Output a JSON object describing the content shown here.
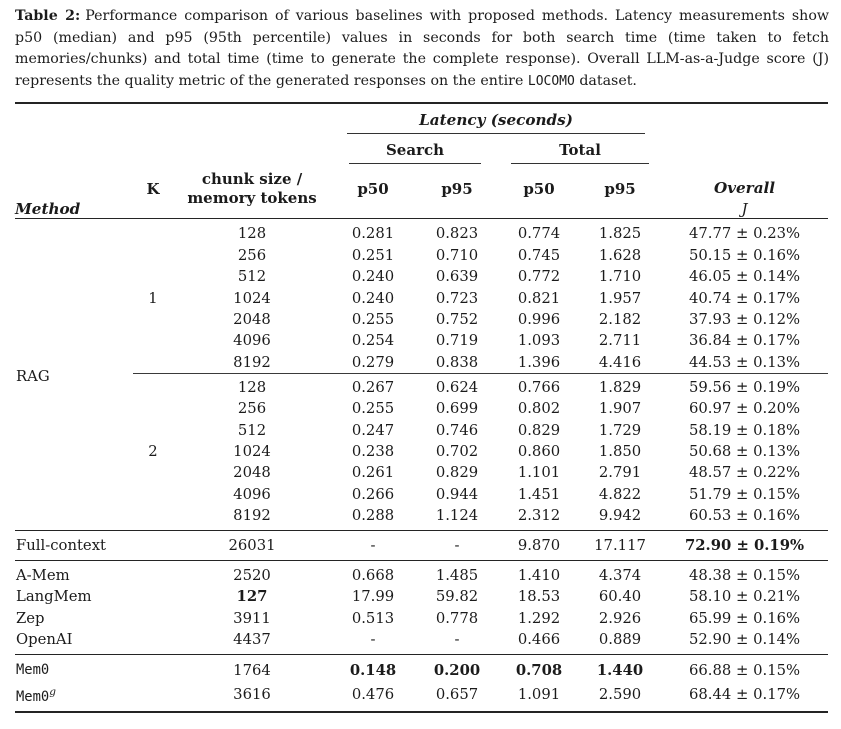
{
  "caption": {
    "label": "Table 2:",
    "body": "Performance comparison of various baselines with proposed methods. Latency measurements show p50 (median) and p95 (95th percentile) values in seconds for both search time (time taken to fetch memories/chunks) and total time (time to generate the complete response). Overall LLM-as-a-Judge score (J) represents the quality metric of the generated responses on the entire ",
    "dataset_name": "LOCOMO",
    "tail": " dataset."
  },
  "table": {
    "header": {
      "method": "Method",
      "latency_group": "Latency (seconds)",
      "search_group": "Search",
      "total_group": "Total",
      "overall": "Overall",
      "overall_metric": "J",
      "k": "K",
      "chunk_line1": "chunk size /",
      "chunk_line2": "memory tokens",
      "search_p50": "p50",
      "search_p95": "p95",
      "total_p50": "p50",
      "total_p95": "p95"
    },
    "sections": [
      {
        "divider": false,
        "rows": [
          {
            "method": "RAG",
            "method_rowspan": 14,
            "k": "",
            "chunk": "128",
            "s50": "0.281",
            "s95": "0.823",
            "t50": "0.774",
            "t95": "1.825",
            "j": "47.77 ± 0.23%"
          },
          {
            "k": "",
            "chunk": "256",
            "s50": "0.251",
            "s95": "0.710",
            "t50": "0.745",
            "t95": "1.628",
            "j": "50.15 ± 0.16%"
          },
          {
            "k": "",
            "chunk": "512",
            "s50": "0.240",
            "s95": "0.639",
            "t50": "0.772",
            "t95": "1.710",
            "j": "46.05 ± 0.14%"
          },
          {
            "k": "1",
            "chunk": "1024",
            "s50": "0.240",
            "s95": "0.723",
            "t50": "0.821",
            "t95": "1.957",
            "j": "40.74 ± 0.17%"
          },
          {
            "k": "",
            "chunk": "2048",
            "s50": "0.255",
            "s95": "0.752",
            "t50": "0.996",
            "t95": "2.182",
            "j": "37.93 ± 0.12%"
          },
          {
            "k": "",
            "chunk": "4096",
            "s50": "0.254",
            "s95": "0.719",
            "t50": "1.093",
            "t95": "2.711",
            "j": "36.84 ± 0.17%"
          },
          {
            "k": "",
            "chunk": "8192",
            "s50": "0.279",
            "s95": "0.838",
            "t50": "1.396",
            "t95": "4.416",
            "j": "44.53 ± 0.13%"
          },
          {
            "rule_above": true,
            "k": "",
            "chunk": "128",
            "s50": "0.267",
            "s95": "0.624",
            "t50": "0.766",
            "t95": "1.829",
            "j": "59.56 ± 0.19%"
          },
          {
            "k": "",
            "chunk": "256",
            "s50": "0.255",
            "s95": "0.699",
            "t50": "0.802",
            "t95": "1.907",
            "j": "60.97 ± 0.20%"
          },
          {
            "k": "",
            "chunk": "512",
            "s50": "0.247",
            "s95": "0.746",
            "t50": "0.829",
            "t95": "1.729",
            "j": "58.19 ± 0.18%"
          },
          {
            "k": "2",
            "chunk": "1024",
            "s50": "0.238",
            "s95": "0.702",
            "t50": "0.860",
            "t95": "1.850",
            "j": "50.68 ± 0.13%"
          },
          {
            "k": "",
            "chunk": "2048",
            "s50": "0.261",
            "s95": "0.829",
            "t50": "1.101",
            "t95": "2.791",
            "j": "48.57 ± 0.22%"
          },
          {
            "k": "",
            "chunk": "4096",
            "s50": "0.266",
            "s95": "0.944",
            "t50": "1.451",
            "t95": "4.822",
            "j": "51.79 ± 0.15%"
          },
          {
            "k": "",
            "chunk": "8192",
            "s50": "0.288",
            "s95": "1.124",
            "t50": "2.312",
            "t95": "9.942",
            "j": "60.53 ± 0.16%"
          }
        ]
      },
      {
        "divider": true,
        "rows": [
          {
            "method": "Full-context",
            "k": "",
            "chunk": "26031",
            "s50": "-",
            "s95": "-",
            "t50": "9.870",
            "t95": "17.117",
            "j": {
              "text": "72.90 ± 0.19%",
              "bold": true
            }
          }
        ]
      },
      {
        "divider": true,
        "rows": [
          {
            "method": "A-Mem",
            "k": "",
            "chunk": "2520",
            "s50": "0.668",
            "s95": "1.485",
            "t50": "1.410",
            "t95": "4.374",
            "j": "48.38 ± 0.15%"
          },
          {
            "method": "LangMem",
            "k": "",
            "chunk": {
              "text": "127",
              "bold": true
            },
            "s50": "17.99",
            "s95": "59.82",
            "t50": "18.53",
            "t95": "60.40",
            "j": "58.10 ± 0.21%"
          },
          {
            "method": "Zep",
            "k": "",
            "chunk": "3911",
            "s50": "0.513",
            "s95": "0.778",
            "t50": "1.292",
            "t95": "2.926",
            "j": "65.99 ± 0.16%"
          },
          {
            "method": "OpenAI",
            "k": "",
            "chunk": "4437",
            "s50": "-",
            "s95": "-",
            "t50": "0.466",
            "t95": "0.889",
            "j": "52.90 ± 0.14%"
          }
        ]
      },
      {
        "divider": true,
        "rows": [
          {
            "method": "Mem0",
            "method_mono": true,
            "k": "",
            "chunk": "1764",
            "s50": {
              "text": "0.148",
              "bold": true
            },
            "s95": {
              "text": "0.200",
              "bold": true
            },
            "t50": {
              "text": "0.708",
              "bold": true
            },
            "t95": {
              "text": "1.440",
              "bold": true
            },
            "j": "66.88 ± 0.15%"
          },
          {
            "method": "Mem0",
            "method_mono": true,
            "method_sup": "g",
            "k": "",
            "chunk": "3616",
            "s50": "0.476",
            "s95": "0.657",
            "t50": "1.091",
            "t95": "2.590",
            "j": "68.44 ± 0.17%"
          }
        ]
      }
    ]
  }
}
